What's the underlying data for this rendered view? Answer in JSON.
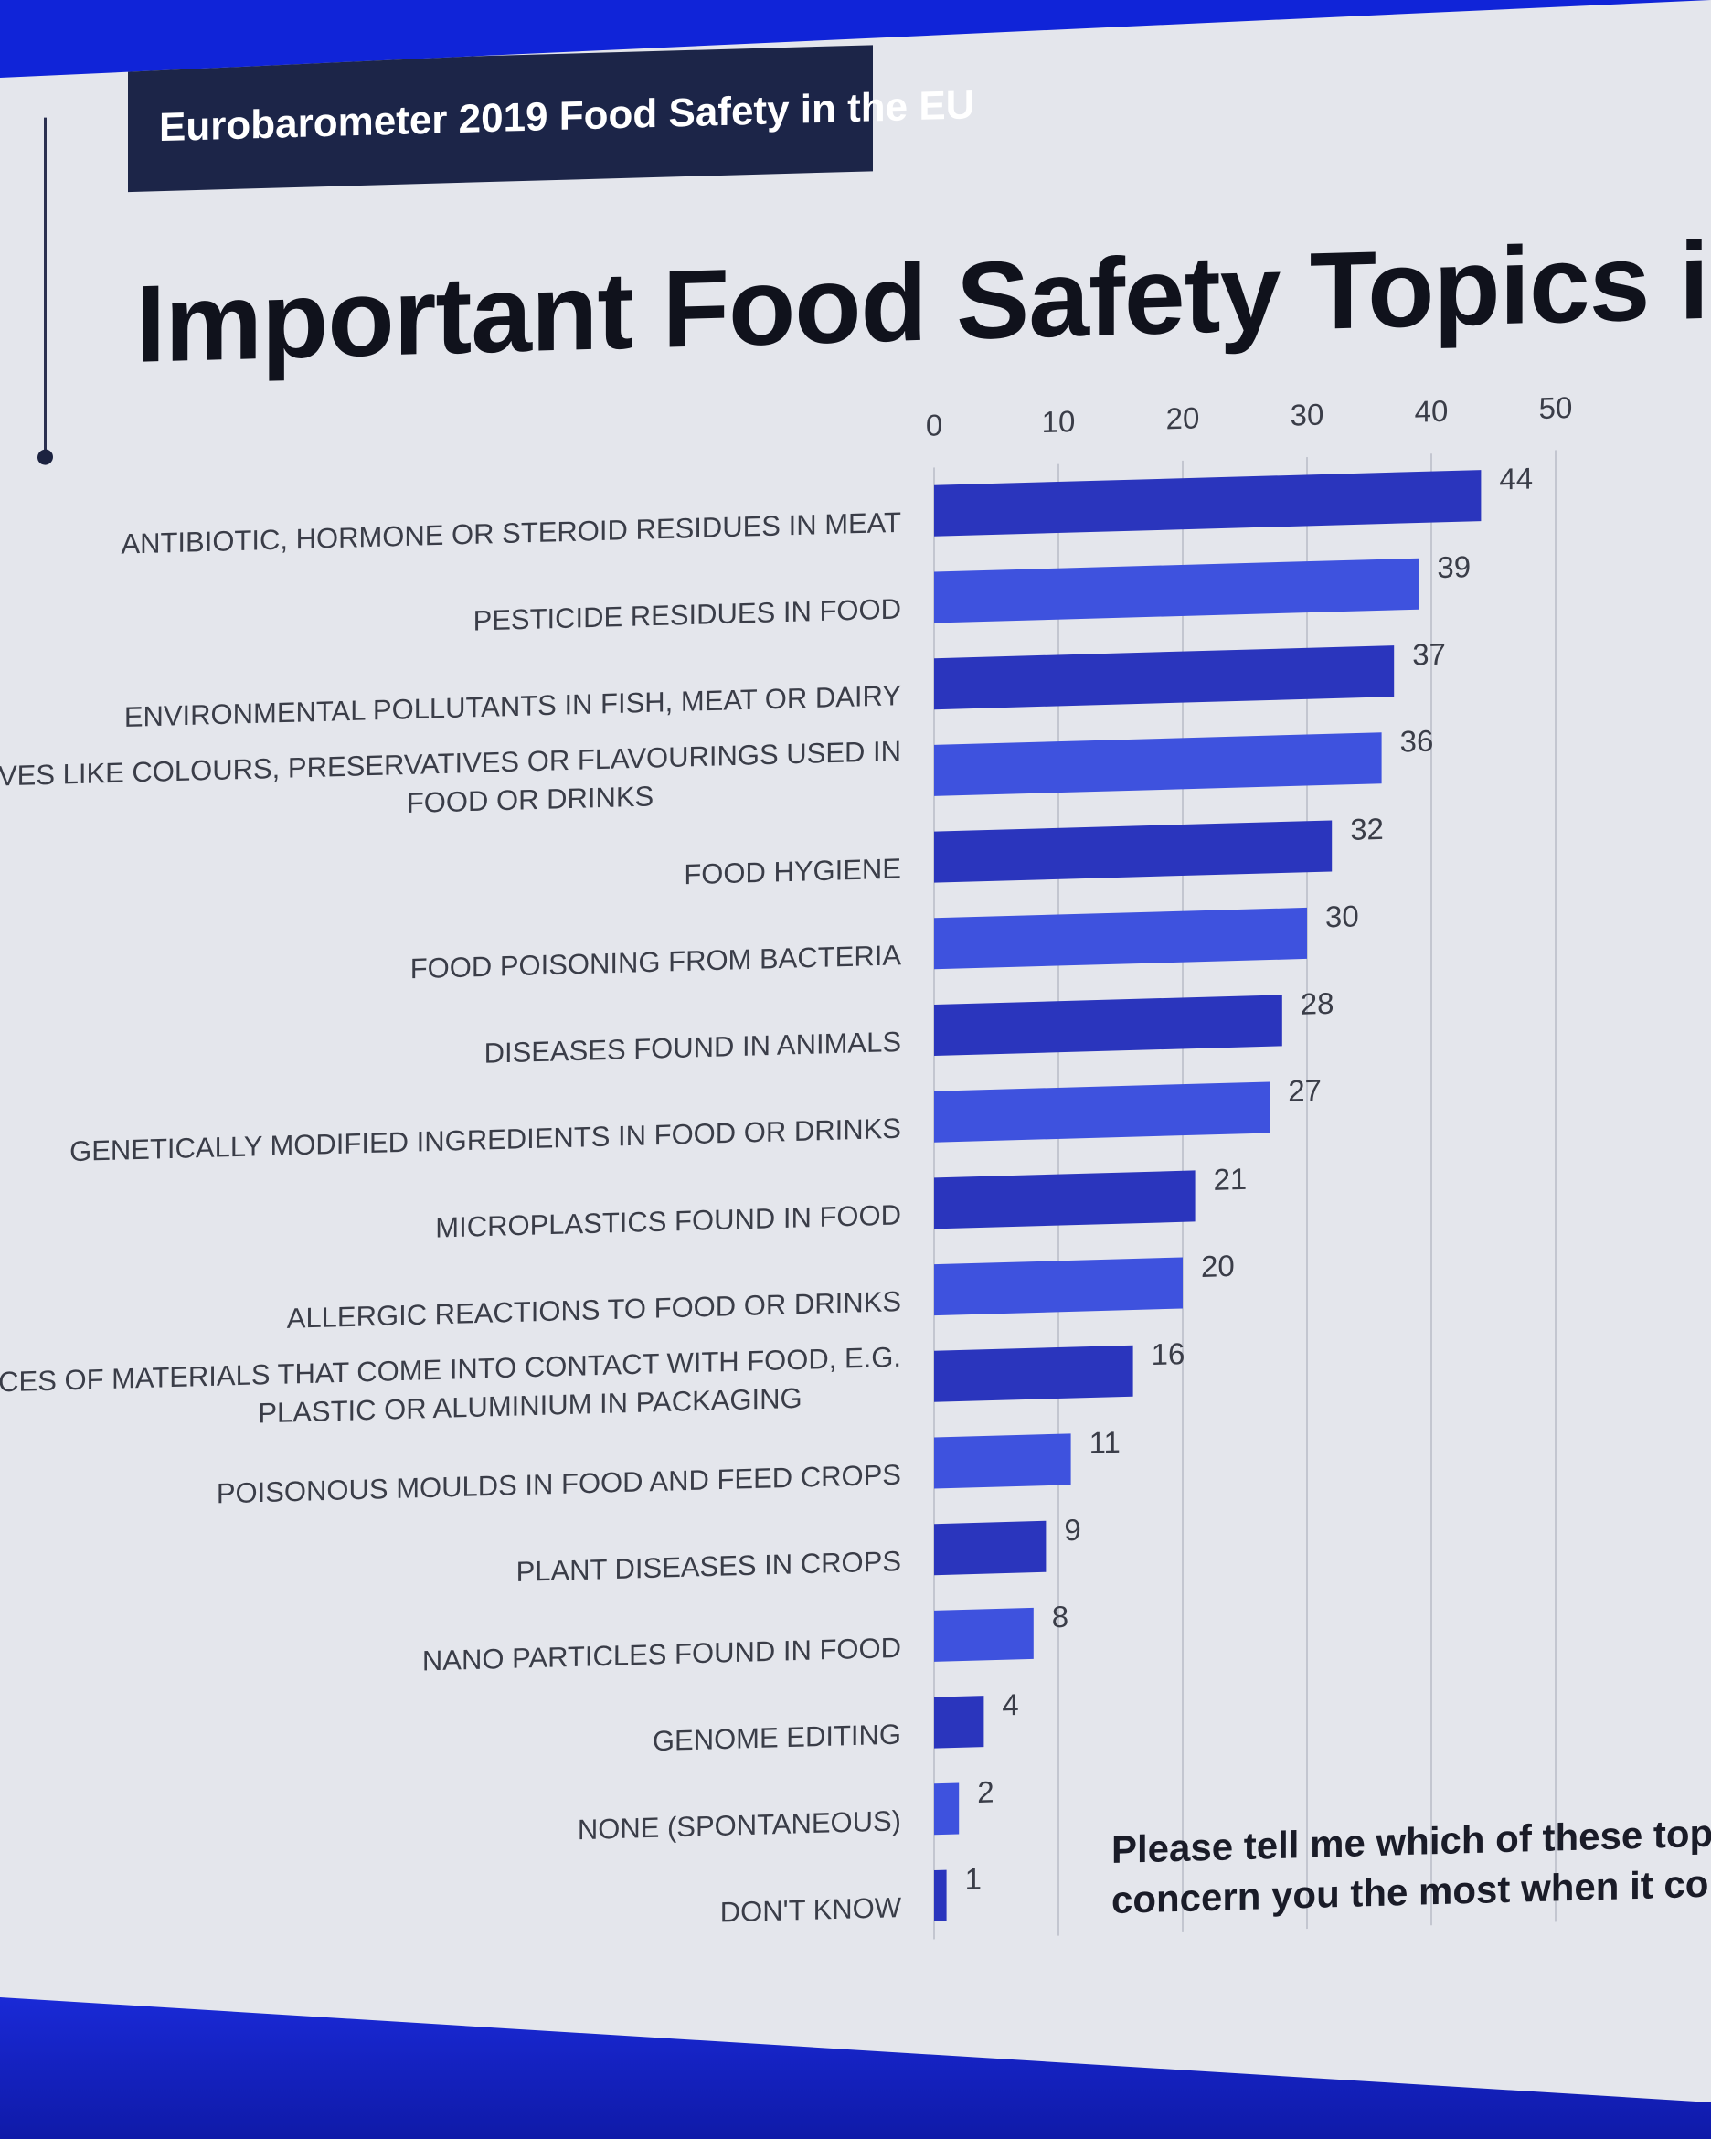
{
  "header": {
    "tag": "Eurobarometer 2019 Food Safety in the EU",
    "title": "Important Food Safety Topics in EU"
  },
  "note": {
    "line1": "Please tell me which of these topics y",
    "line2": "concern you the most when it comes"
  },
  "colors": {
    "bar_dark": "#2a35bd",
    "bar_light": "#3e52de",
    "title": "#10121c",
    "tag_bg": "#1c2548"
  },
  "chart_data": {
    "type": "bar",
    "orientation": "horizontal",
    "categories": [
      [
        "ANTIBIOTIC, HORMONE OR STEROID RESIDUES IN MEAT"
      ],
      [
        "PESTICIDE RESIDUES IN FOOD"
      ],
      [
        "ENVIRONMENTAL POLLUTANTS IN FISH, MEAT OR DAIRY"
      ],
      [
        "ADDITIVES LIKE COLOURS, PRESERVATIVES OR FLAVOURINGS USED IN",
        "FOOD OR DRINKS"
      ],
      [
        "FOOD HYGIENE"
      ],
      [
        "FOOD POISONING FROM BACTERIA"
      ],
      [
        "DISEASES FOUND IN ANIMALS"
      ],
      [
        "GENETICALLY MODIFIED INGREDIENTS IN FOOD OR DRINKS"
      ],
      [
        "MICROPLASTICS FOUND IN FOOD"
      ],
      [
        "ALLERGIC REACTIONS TO FOOD OR DRINKS"
      ],
      [
        "TRACES OF MATERIALS THAT COME INTO CONTACT WITH FOOD, E.G.",
        "PLASTIC OR ALUMINIUM IN PACKAGING"
      ],
      [
        "POISONOUS MOULDS IN FOOD AND FEED CROPS"
      ],
      [
        "PLANT DISEASES IN CROPS"
      ],
      [
        "NANO PARTICLES FOUND IN FOOD"
      ],
      [
        "GENOME EDITING"
      ],
      [
        "NONE (SPONTANEOUS)"
      ],
      [
        "DON'T KNOW"
      ]
    ],
    "values": [
      44,
      39,
      37,
      36,
      32,
      30,
      28,
      27,
      21,
      20,
      16,
      11,
      9,
      8,
      4,
      2,
      1
    ],
    "xlim": [
      0,
      50
    ],
    "xticks": [
      0,
      10,
      20,
      30,
      40,
      50
    ],
    "tick_position": "top",
    "grid": true,
    "data_labels": true,
    "legend": "none"
  }
}
